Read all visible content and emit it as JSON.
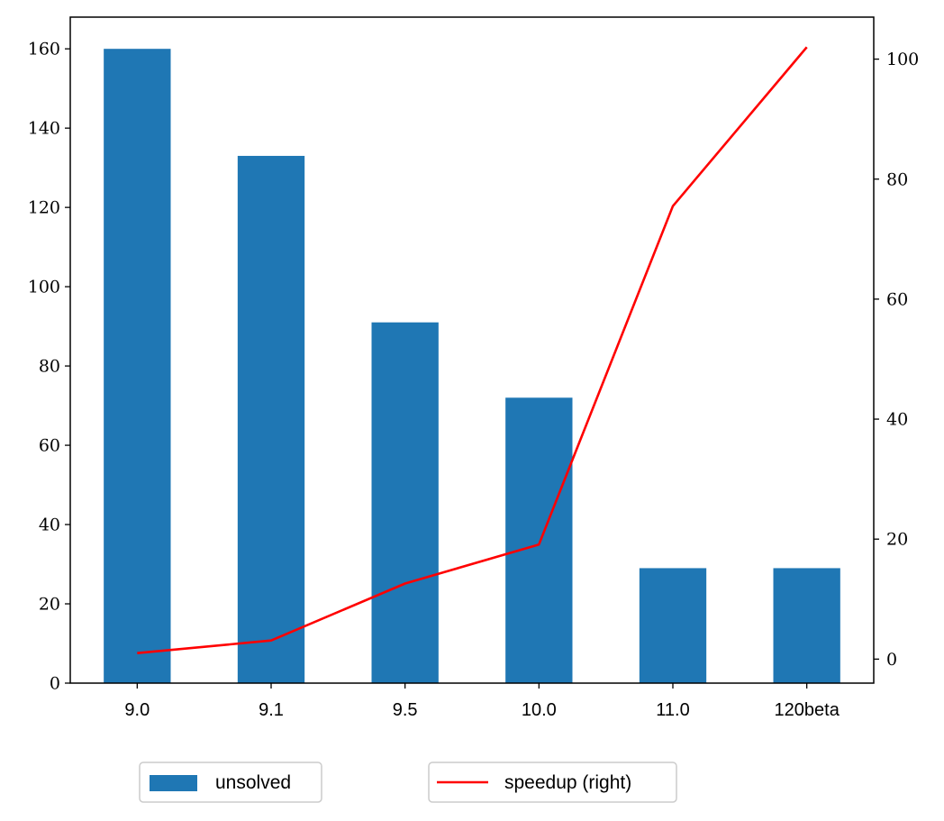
{
  "chart_data": {
    "type": "bar+line",
    "categories": [
      "9.0",
      "9.1",
      "9.5",
      "10.0",
      "11.0",
      "120beta"
    ],
    "series": [
      {
        "name": "unsolved",
        "type": "bar",
        "axis": "left",
        "color": "#1f77b4",
        "values": [
          160,
          133,
          91,
          72,
          29,
          29
        ]
      },
      {
        "name": "speedup (right)",
        "type": "line",
        "axis": "right",
        "color": "#ff0000",
        "values": [
          1,
          3.1,
          12.6,
          19.1,
          75.5,
          102
        ]
      }
    ],
    "y_left": {
      "lim": [
        0,
        168
      ],
      "ticks": [
        0,
        20,
        40,
        60,
        80,
        100,
        120,
        140,
        160
      ]
    },
    "y_right": {
      "lim": [
        -4,
        107
      ],
      "ticks": [
        0,
        20,
        40,
        60,
        80,
        100
      ]
    },
    "legend": [
      {
        "label": "unsolved",
        "kind": "bar",
        "color": "#1f77b4"
      },
      {
        "label": "speedup (right)",
        "kind": "line",
        "color": "#ff0000"
      }
    ],
    "legend_placement": "below",
    "grid": false
  }
}
